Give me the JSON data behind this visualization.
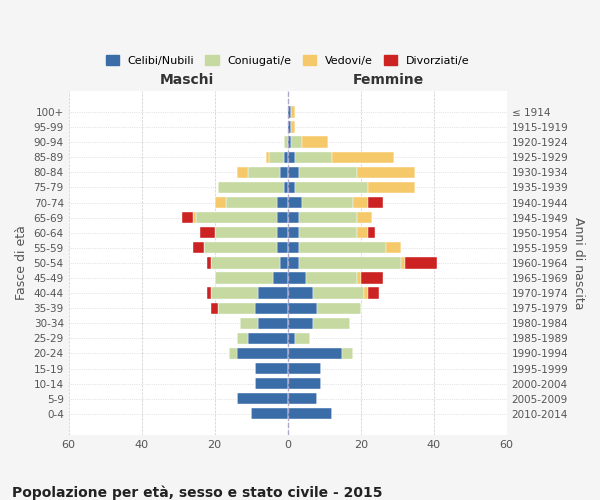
{
  "age_groups": [
    "100+",
    "95-99",
    "90-94",
    "85-89",
    "80-84",
    "75-79",
    "70-74",
    "65-69",
    "60-64",
    "55-59",
    "50-54",
    "45-49",
    "40-44",
    "35-39",
    "30-34",
    "25-29",
    "20-24",
    "15-19",
    "10-14",
    "5-9",
    "0-4"
  ],
  "birth_years": [
    "≤ 1914",
    "1915-1919",
    "1920-1924",
    "1925-1929",
    "1930-1934",
    "1935-1939",
    "1940-1944",
    "1945-1949",
    "1950-1954",
    "1955-1959",
    "1960-1964",
    "1965-1969",
    "1970-1974",
    "1975-1979",
    "1980-1984",
    "1985-1989",
    "1990-1994",
    "1995-1999",
    "2000-2004",
    "2005-2009",
    "2010-2014"
  ],
  "colors": {
    "celibi": "#3a6ca8",
    "coniugati": "#c5d9a0",
    "vedovi": "#f5c96a",
    "divorziati": "#cc2222"
  },
  "maschi": {
    "celibi": [
      0,
      0,
      0,
      1,
      2,
      1,
      3,
      3,
      3,
      3,
      2,
      4,
      8,
      9,
      8,
      11,
      14,
      9,
      9,
      14,
      10
    ],
    "coniugati": [
      0,
      0,
      1,
      4,
      9,
      18,
      14,
      22,
      17,
      20,
      19,
      16,
      13,
      10,
      5,
      3,
      2,
      0,
      0,
      0,
      0
    ],
    "vedovi": [
      0,
      0,
      0,
      1,
      3,
      0,
      3,
      1,
      0,
      0,
      0,
      0,
      0,
      0,
      0,
      0,
      0,
      0,
      0,
      0,
      0
    ],
    "divorziati": [
      0,
      0,
      0,
      0,
      0,
      0,
      0,
      3,
      4,
      3,
      1,
      0,
      1,
      2,
      0,
      0,
      0,
      0,
      0,
      0,
      0
    ]
  },
  "femmine": {
    "celibi": [
      1,
      1,
      1,
      2,
      3,
      2,
      4,
      3,
      3,
      3,
      3,
      5,
      7,
      8,
      7,
      2,
      15,
      9,
      9,
      8,
      12
    ],
    "coniugati": [
      0,
      0,
      3,
      10,
      16,
      20,
      14,
      16,
      16,
      24,
      28,
      14,
      14,
      12,
      10,
      4,
      3,
      0,
      0,
      0,
      0
    ],
    "vedovi": [
      1,
      1,
      7,
      17,
      16,
      13,
      4,
      4,
      3,
      4,
      1,
      1,
      1,
      0,
      0,
      0,
      0,
      0,
      0,
      0,
      0
    ],
    "divorziati": [
      0,
      0,
      0,
      0,
      0,
      0,
      4,
      0,
      2,
      0,
      9,
      6,
      3,
      0,
      0,
      0,
      0,
      0,
      0,
      0,
      0
    ]
  },
  "xlim": 60,
  "title": "Popolazione per età, sesso e stato civile - 2015",
  "ylabel_left": "Fasce di età",
  "ylabel_right": "Anni di nascita",
  "xlabel_maschi": "Maschi",
  "xlabel_femmine": "Femmine",
  "legend_labels": [
    "Celibi/Nubili",
    "Coniugati/e",
    "Vedovi/e",
    "Divorziati/e"
  ],
  "bg_color": "#f5f5f5",
  "plot_bg_color": "#ffffff"
}
